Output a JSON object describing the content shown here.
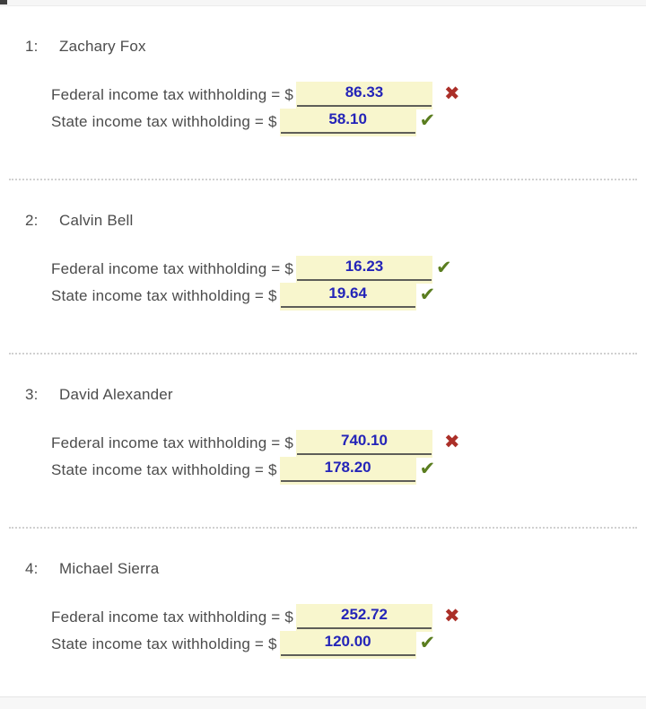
{
  "labels": {
    "federal": "Federal income tax withholding = $",
    "state": "State income tax withholding = $"
  },
  "colors": {
    "field_background": "#f8f6cd",
    "value_text": "#2424b8",
    "correct": "#5a7d1f",
    "incorrect": "#ab2f28"
  },
  "problems": [
    {
      "number": "1:",
      "name": "Zachary Fox",
      "federal": "86.33",
      "federal_status": "incorrect",
      "federal_mark": "✖",
      "state": "58.10",
      "state_status": "correct",
      "state_mark": "✔"
    },
    {
      "number": "2:",
      "name": "Calvin Bell",
      "federal": "16.23",
      "federal_status": "correct",
      "federal_mark": "✔",
      "state": "19.64",
      "state_status": "correct",
      "state_mark": "✔"
    },
    {
      "number": "3:",
      "name": "David Alexander",
      "federal": "740.10",
      "federal_status": "incorrect",
      "federal_mark": "✖",
      "state": "178.20",
      "state_status": "correct",
      "state_mark": "✔"
    },
    {
      "number": "4:",
      "name": "Michael Sierra",
      "federal": "252.72",
      "federal_status": "incorrect",
      "federal_mark": "✖",
      "state": "120.00",
      "state_status": "correct",
      "state_mark": "✔"
    }
  ]
}
